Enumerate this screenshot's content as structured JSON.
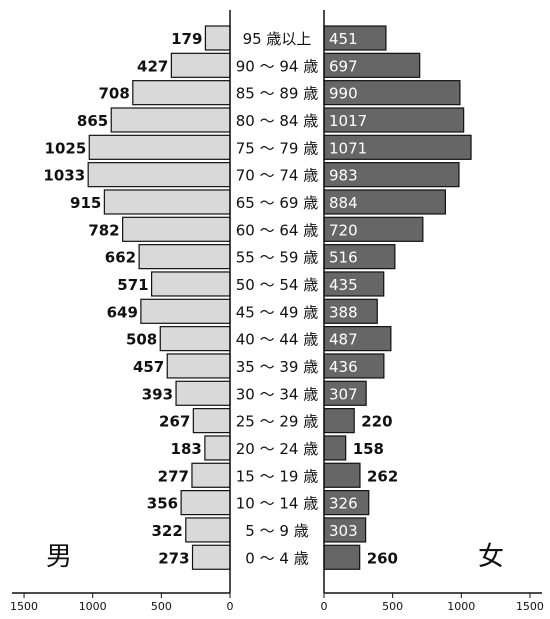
{
  "chart_data": {
    "type": "bar",
    "orientation": "horizontal",
    "layout": "population-pyramid",
    "categories": [
      "95 歳以上",
      "90 ～ 94 歳",
      "85 ～ 89 歳",
      "80 ～ 84 歳",
      "75 ～ 79 歳",
      "70 ～ 74 歳",
      "65 ～ 69 歳",
      "60 ～ 64 歳",
      "55 ～ 59 歳",
      "50 ～ 54 歳",
      "45 ～ 49 歳",
      "40 ～ 44 歳",
      "35 ～ 39 歳",
      "30 ～ 34 歳",
      "25 ～ 29 歳",
      "20 ～ 24 歳",
      "15 ～ 19 歳",
      "10 ～ 14 歳",
      "5 ～ 9 歳",
      "0 ～ 4 歳"
    ],
    "series": [
      {
        "name": "男",
        "side": "left",
        "color": "#d9d9d9",
        "values": [
          179,
          427,
          708,
          865,
          1025,
          1033,
          915,
          782,
          662,
          571,
          649,
          508,
          457,
          393,
          267,
          183,
          277,
          356,
          322,
          273
        ]
      },
      {
        "name": "女",
        "side": "right",
        "color": "#666666",
        "values": [
          451,
          697,
          990,
          1017,
          1071,
          983,
          884,
          720,
          516,
          435,
          388,
          487,
          436,
          307,
          220,
          158,
          262,
          326,
          303,
          260
        ]
      }
    ],
    "x_ticks": [
      1500,
      1000,
      500,
      0
    ],
    "xlim": [
      0,
      1500
    ],
    "grid": false
  }
}
